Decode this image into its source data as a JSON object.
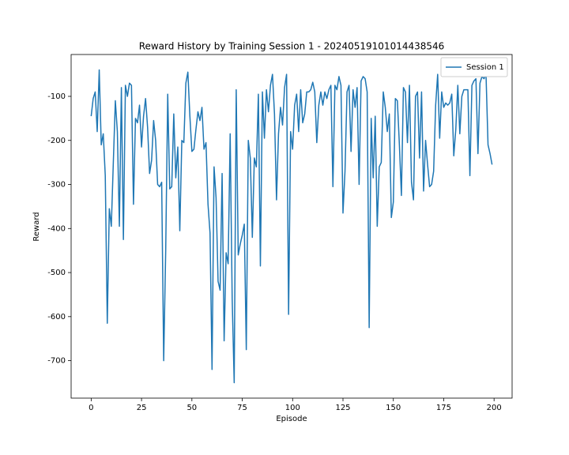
{
  "chart_data": {
    "type": "line",
    "title": "Reward History by Training Session 1 - 20240519101014438546",
    "x_label": "Episode",
    "y_label": "Reward",
    "xlim": [
      -9.95,
      208.95
    ],
    "ylim": [
      -785,
      -5
    ],
    "xticks": [
      0,
      25,
      50,
      75,
      100,
      125,
      150,
      175,
      200
    ],
    "yticks": [
      -700,
      -600,
      -500,
      -400,
      -300,
      -200,
      -100
    ],
    "legend": "upper right",
    "x": [
      0,
      1,
      2,
      3,
      4,
      5,
      6,
      7,
      8,
      9,
      10,
      11,
      12,
      13,
      14,
      15,
      16,
      17,
      18,
      19,
      20,
      21,
      22,
      23,
      24,
      25,
      26,
      27,
      28,
      29,
      30,
      31,
      32,
      33,
      34,
      35,
      36,
      37,
      38,
      39,
      40,
      41,
      42,
      43,
      44,
      45,
      46,
      47,
      48,
      49,
      50,
      51,
      52,
      53,
      54,
      55,
      56,
      57,
      58,
      59,
      60,
      61,
      62,
      63,
      64,
      65,
      66,
      67,
      68,
      69,
      70,
      71,
      72,
      73,
      74,
      75,
      76,
      77,
      78,
      79,
      80,
      81,
      82,
      83,
      84,
      85,
      86,
      87,
      88,
      89,
      90,
      91,
      92,
      93,
      94,
      95,
      96,
      97,
      98,
      99,
      100,
      101,
      102,
      103,
      104,
      105,
      106,
      107,
      108,
      109,
      110,
      111,
      112,
      113,
      114,
      115,
      116,
      117,
      118,
      119,
      120,
      121,
      122,
      123,
      124,
      125,
      126,
      127,
      128,
      129,
      130,
      131,
      132,
      133,
      134,
      135,
      136,
      137,
      138,
      139,
      140,
      141,
      142,
      143,
      144,
      145,
      146,
      147,
      148,
      149,
      150,
      151,
      152,
      153,
      154,
      155,
      156,
      157,
      158,
      159,
      160,
      161,
      162,
      163,
      164,
      165,
      166,
      167,
      168,
      169,
      170,
      171,
      172,
      173,
      174,
      175,
      176,
      177,
      178,
      179,
      180,
      181,
      182,
      183,
      184,
      185,
      186,
      187,
      188,
      189,
      190,
      191,
      192,
      193,
      194,
      195,
      196,
      197,
      198,
      199
    ],
    "series": [
      {
        "name": "Session 1",
        "color": "#1f77b4",
        "values": [
          -145,
          -105,
          -90,
          -180,
          -40,
          -210,
          -185,
          -280,
          -615,
          -355,
          -395,
          -250,
          -110,
          -180,
          -395,
          -80,
          -425,
          -75,
          -100,
          -70,
          -75,
          -345,
          -150,
          -160,
          -120,
          -215,
          -145,
          -105,
          -170,
          -275,
          -245,
          -155,
          -200,
          -300,
          -305,
          -295,
          -700,
          -450,
          -95,
          -310,
          -305,
          -140,
          -285,
          -215,
          -405,
          -200,
          -205,
          -70,
          -45,
          -145,
          -225,
          -220,
          -175,
          -135,
          -155,
          -125,
          -220,
          -205,
          -345,
          -410,
          -720,
          -260,
          -330,
          -520,
          -540,
          -275,
          -655,
          -455,
          -480,
          -185,
          -560,
          -750,
          -85,
          -460,
          -435,
          -415,
          -390,
          -675,
          -200,
          -240,
          -420,
          -240,
          -260,
          -95,
          -485,
          -90,
          -195,
          -85,
          -135,
          -75,
          -50,
          -140,
          -335,
          -185,
          -125,
          -165,
          -80,
          -50,
          -595,
          -180,
          -220,
          -120,
          -95,
          -180,
          -85,
          -160,
          -140,
          -90,
          -90,
          -85,
          -68,
          -90,
          -205,
          -120,
          -90,
          -120,
          -90,
          -105,
          -85,
          -75,
          -305,
          -75,
          -85,
          -55,
          -75,
          -365,
          -270,
          -90,
          -75,
          -225,
          -85,
          -125,
          -80,
          -300,
          -65,
          -55,
          -60,
          -90,
          -625,
          -150,
          -285,
          -145,
          -395,
          -260,
          -250,
          -90,
          -125,
          -180,
          -140,
          -375,
          -340,
          -105,
          -110,
          -210,
          -325,
          -80,
          -90,
          -205,
          -75,
          -295,
          -335,
          -100,
          -90,
          -240,
          -90,
          -315,
          -200,
          -255,
          -305,
          -300,
          -270,
          -120,
          -50,
          -195,
          -90,
          -125,
          -115,
          -120,
          -115,
          -95,
          -235,
          -175,
          -75,
          -185,
          -100,
          -85,
          -85,
          -85,
          -280,
          -75,
          -65,
          -60,
          -230,
          -70,
          -55,
          -60,
          -50,
          -210,
          -230,
          -255
        ]
      }
    ]
  }
}
